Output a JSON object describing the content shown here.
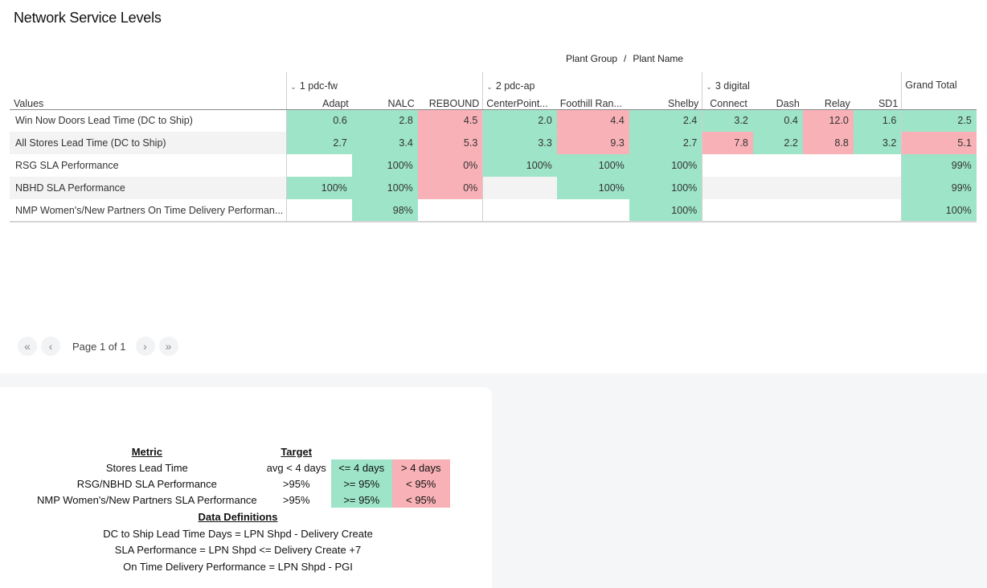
{
  "title": "Network Service Levels",
  "column_header_caption": {
    "group": "Plant Group",
    "separator": "/",
    "name": "Plant Name"
  },
  "pivot": {
    "row_header_label": "Values",
    "groups": [
      {
        "label": "1 pdc-fw",
        "plants": [
          "Adapt",
          "NALC",
          "REBOUND"
        ]
      },
      {
        "label": "2 pdc-ap",
        "plants": [
          "CenterPoint...",
          "Foothill Ran...",
          "Shelby"
        ]
      },
      {
        "label": "3 digital",
        "plants": [
          "Connect",
          "Dash",
          "Relay",
          "SD1"
        ]
      }
    ],
    "grand_total_label": "Grand Total",
    "rows": [
      {
        "label": "Win Now Doors Lead Time (DC to Ship)",
        "cells": [
          {
            "v": "0.6",
            "s": "good"
          },
          {
            "v": "2.8",
            "s": "good"
          },
          {
            "v": "4.5",
            "s": "bad"
          },
          {
            "v": "2.0",
            "s": "good"
          },
          {
            "v": "4.4",
            "s": "bad"
          },
          {
            "v": "2.4",
            "s": "good"
          },
          {
            "v": "3.2",
            "s": "good"
          },
          {
            "v": "0.4",
            "s": "good"
          },
          {
            "v": "12.0",
            "s": "bad"
          },
          {
            "v": "1.6",
            "s": "good"
          },
          {
            "v": "2.5",
            "s": "good"
          }
        ]
      },
      {
        "label": "All Stores Lead Time (DC to Ship)",
        "cells": [
          {
            "v": "2.7",
            "s": "good"
          },
          {
            "v": "3.4",
            "s": "good"
          },
          {
            "v": "5.3",
            "s": "bad"
          },
          {
            "v": "3.3",
            "s": "good"
          },
          {
            "v": "9.3",
            "s": "bad"
          },
          {
            "v": "2.7",
            "s": "good"
          },
          {
            "v": "7.8",
            "s": "bad"
          },
          {
            "v": "2.2",
            "s": "good"
          },
          {
            "v": "8.8",
            "s": "bad"
          },
          {
            "v": "3.2",
            "s": "good"
          },
          {
            "v": "5.1",
            "s": "bad"
          }
        ]
      },
      {
        "label": "RSG SLA Performance",
        "cells": [
          {
            "v": "",
            "s": "empty"
          },
          {
            "v": "100%",
            "s": "good"
          },
          {
            "v": "0%",
            "s": "bad"
          },
          {
            "v": "100%",
            "s": "good"
          },
          {
            "v": "100%",
            "s": "good"
          },
          {
            "v": "100%",
            "s": "good"
          },
          {
            "v": "",
            "s": "empty"
          },
          {
            "v": "",
            "s": "empty"
          },
          {
            "v": "",
            "s": "empty"
          },
          {
            "v": "",
            "s": "empty"
          },
          {
            "v": "99%",
            "s": "good"
          }
        ]
      },
      {
        "label": "NBHD SLA Performance",
        "cells": [
          {
            "v": "100%",
            "s": "good"
          },
          {
            "v": "100%",
            "s": "good"
          },
          {
            "v": "0%",
            "s": "bad"
          },
          {
            "v": "",
            "s": "empty"
          },
          {
            "v": "100%",
            "s": "good"
          },
          {
            "v": "100%",
            "s": "good"
          },
          {
            "v": "",
            "s": "empty"
          },
          {
            "v": "",
            "s": "empty"
          },
          {
            "v": "",
            "s": "empty"
          },
          {
            "v": "",
            "s": "empty"
          },
          {
            "v": "99%",
            "s": "good"
          }
        ]
      },
      {
        "label": "NMP Women's/New Partners On Time Delivery Performan...",
        "cells": [
          {
            "v": "",
            "s": "empty"
          },
          {
            "v": "98%",
            "s": "good"
          },
          {
            "v": "",
            "s": "empty"
          },
          {
            "v": "",
            "s": "empty"
          },
          {
            "v": "",
            "s": "empty"
          },
          {
            "v": "100%",
            "s": "good"
          },
          {
            "v": "",
            "s": "empty"
          },
          {
            "v": "",
            "s": "empty"
          },
          {
            "v": "",
            "s": "empty"
          },
          {
            "v": "",
            "s": "empty"
          },
          {
            "v": "100%",
            "s": "good"
          }
        ]
      }
    ]
  },
  "pager": {
    "text": "Page 1 of 1",
    "first_icon": "«",
    "prev_icon": "‹",
    "next_icon": "›",
    "last_icon": "»"
  },
  "legend": {
    "metric_header": "Metric",
    "target_header": "Target",
    "rows": [
      {
        "metric": "Stores Lead Time",
        "target": "avg < 4 days",
        "good": "<= 4 days",
        "bad": "> 4 days"
      },
      {
        "metric": "RSG/NBHD SLA Performance",
        "target": ">95%",
        "good": ">= 95%",
        "bad": "< 95%"
      },
      {
        "metric": "NMP Women's/New Partners SLA Performance",
        "target": ">95%",
        "good": ">= 95%",
        "bad": "< 95%"
      }
    ],
    "definitions_header": "Data Definitions",
    "definitions": [
      "DC to Ship Lead Time Days = LPN Shpd - Delivery Create",
      "SLA Performance = LPN Shpd <= Delivery Create +7",
      "On Time Delivery Performance = LPN Shpd - PGI"
    ]
  },
  "colors": {
    "good": "#9de4c9",
    "bad": "#f8b1b6",
    "alt_row": "#f3f3f3",
    "background_panel": "#f5f6f8"
  }
}
